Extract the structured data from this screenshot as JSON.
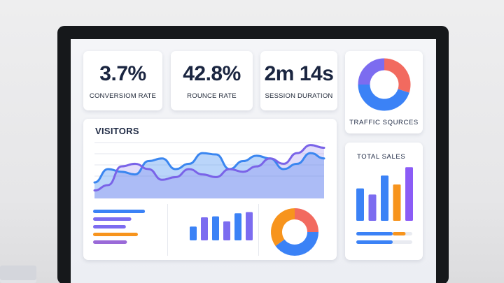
{
  "kpis": [
    {
      "value": "3.7%",
      "label": "CONVERSIOM RATE"
    },
    {
      "value": "42.8%",
      "label": "ROUNCE RATE"
    },
    {
      "value": "2m 14s",
      "label": "SESSION DURATION"
    }
  ],
  "traffic": {
    "label": "TRAFFIC SQURCES",
    "slices": [
      {
        "value": 0.3,
        "color": "#f26a5f"
      },
      {
        "value": 0.45,
        "color": "#3b82f6"
      },
      {
        "value": 0.25,
        "color": "#7c6cf0"
      }
    ]
  },
  "visitors": {
    "title": "VISITORS",
    "series": [
      {
        "color": "#3a86f0",
        "values": [
          12,
          22,
          20,
          18,
          28,
          30,
          22,
          26,
          34,
          33,
          22,
          28,
          32,
          30,
          22,
          26,
          34,
          30
        ]
      },
      {
        "color": "#7a63e8",
        "values": [
          6,
          10,
          24,
          26,
          22,
          14,
          16,
          22,
          18,
          16,
          22,
          20,
          24,
          30,
          26,
          34,
          40,
          38
        ]
      }
    ]
  },
  "mini_bars": {
    "color_a": "#3b82f6",
    "color_b": "#7c6cf0",
    "values": [
      0.45,
      0.75,
      0.78,
      0.62,
      0.88,
      0.92
    ]
  },
  "mini_donut": {
    "slices": [
      {
        "value": 0.25,
        "color": "#f26a5f"
      },
      {
        "value": 0.4,
        "color": "#3b82f6"
      },
      {
        "value": 0.35,
        "color": "#f7941d"
      }
    ]
  },
  "hbars_left": [
    {
      "value": 0.95,
      "color": "#3b82f6"
    },
    {
      "value": 0.7,
      "color": "#7c6cf0"
    },
    {
      "value": 0.6,
      "color": "#7c6cf0"
    },
    {
      "value": 0.82,
      "color": "#f7941d"
    },
    {
      "value": 0.62,
      "color": "#9a6ad8"
    }
  ],
  "total_sales": {
    "title": "TOTAL SALES",
    "bars": [
      {
        "value": 0.58,
        "color": "#3b82f6"
      },
      {
        "value": 0.47,
        "color": "#7c6cf0"
      },
      {
        "value": 0.81,
        "color": "#3b82f6"
      },
      {
        "value": 0.65,
        "color": "#f7941d"
      },
      {
        "value": 0.96,
        "color": "#8b5cf6"
      }
    ],
    "progress": [
      {
        "segments": [
          {
            "value": 0.65,
            "color": "#3b82f6"
          },
          {
            "value": 0.23,
            "color": "#f7941d"
          }
        ]
      },
      {
        "segments": [
          {
            "value": 0.65,
            "color": "#3b82f6"
          }
        ]
      }
    ]
  }
}
